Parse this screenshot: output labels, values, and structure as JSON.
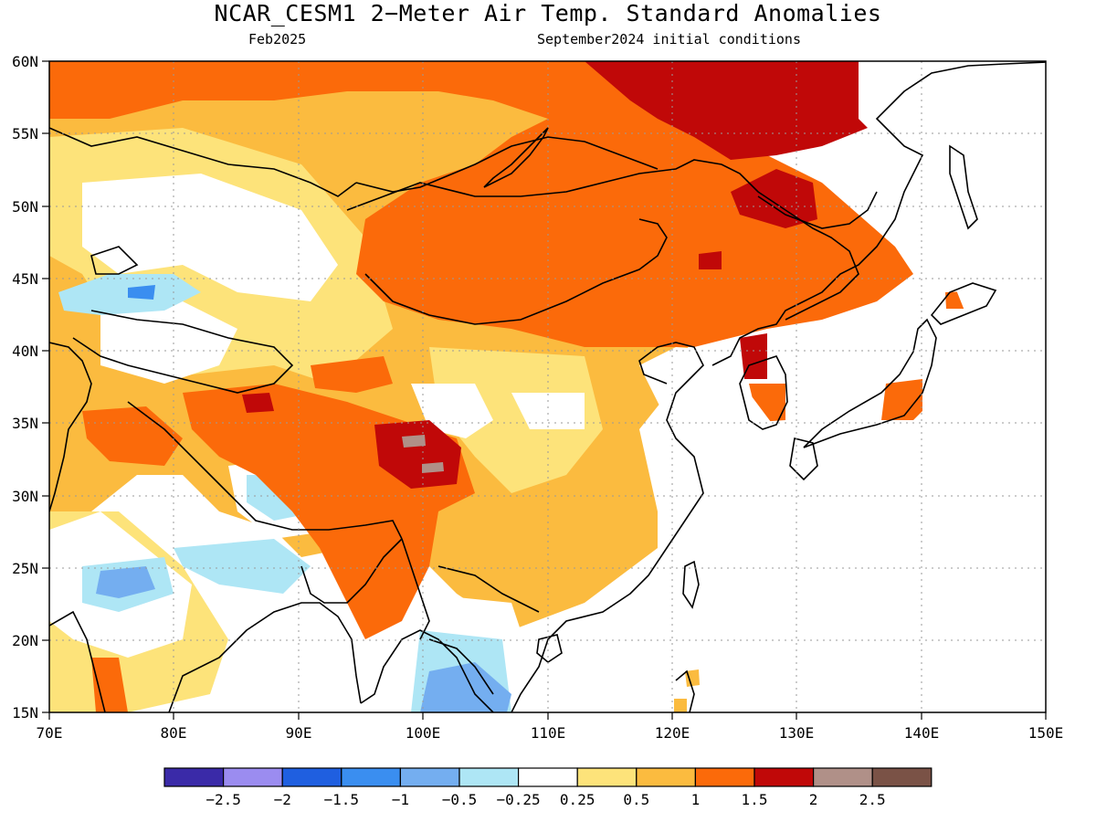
{
  "title": "NCAR_CESM1 2−Meter Air Temp. Standard Anomalies",
  "subtitle_left": "Feb2025",
  "subtitle_right": "September2024 initial conditions",
  "map": {
    "lon_range": [
      70,
      150
    ],
    "lat_range": [
      15,
      60
    ],
    "lon_ticks": [
      "70E",
      "80E",
      "90E",
      "100E",
      "110E",
      "120E",
      "130E",
      "140E",
      "150E"
    ],
    "lat_ticks": [
      "15N",
      "20N",
      "25N",
      "30N",
      "35N",
      "40N",
      "45N",
      "50N",
      "55N",
      "60N"
    ],
    "gridlines": "dotted"
  },
  "colorbar": {
    "colors": [
      "#3a2aa8",
      "#9b8cf0",
      "#1f5fe0",
      "#3a8ef0",
      "#74aef0",
      "#aee6f5",
      "#ffffff",
      "#fde37a",
      "#fbbb3f",
      "#fb6a0a",
      "#c00808",
      "#b09088",
      "#7a5246"
    ],
    "labels": [
      "−2.5",
      "−2",
      "−1.5",
      "−1",
      "−0.5",
      "−0.25",
      "0.25",
      "0.5",
      "1",
      "1.5",
      "2",
      "2.5"
    ]
  }
}
